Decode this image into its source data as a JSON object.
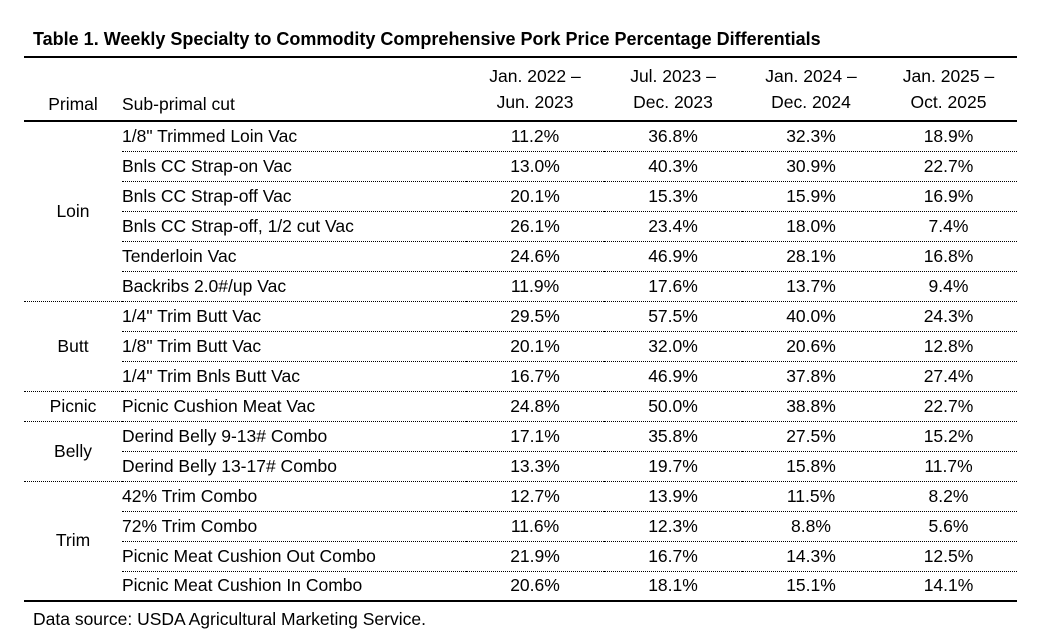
{
  "title": "Table 1. Weekly Specialty to Commodity Comprehensive Pork Price Percentage Differentials",
  "table": {
    "headers": {
      "primal": "Primal",
      "subprimal": "Sub-primal cut",
      "periods": [
        {
          "line1": "Jan. 2022 –",
          "line2": "Jun. 2023"
        },
        {
          "line1": "Jul. 2023 –",
          "line2": "Dec. 2023"
        },
        {
          "line1": "Jan. 2024 –",
          "line2": "Dec. 2024"
        },
        {
          "line1": "Jan. 2025 –",
          "line2": "Oct. 2025"
        }
      ]
    },
    "sections": [
      {
        "primal": "Loin",
        "rows": [
          {
            "cut": "1/8\" Trimmed Loin Vac",
            "values": [
              "11.2%",
              "36.8%",
              "32.3%",
              "18.9%"
            ]
          },
          {
            "cut": "Bnls CC Strap-on Vac",
            "values": [
              "13.0%",
              "40.3%",
              "30.9%",
              "22.7%"
            ]
          },
          {
            "cut": "Bnls CC Strap-off Vac",
            "values": [
              "20.1%",
              "15.3%",
              "15.9%",
              "16.9%"
            ]
          },
          {
            "cut": "Bnls CC Strap-off, 1/2 cut Vac",
            "values": [
              "26.1%",
              "23.4%",
              "18.0%",
              "7.4%"
            ]
          },
          {
            "cut": "Tenderloin Vac",
            "values": [
              "24.6%",
              "46.9%",
              "28.1%",
              "16.8%"
            ]
          },
          {
            "cut": "Backribs 2.0#/up Vac",
            "values": [
              "11.9%",
              "17.6%",
              "13.7%",
              "9.4%"
            ]
          }
        ]
      },
      {
        "primal": "Butt",
        "rows": [
          {
            "cut": "1/4\" Trim Butt Vac",
            "values": [
              "29.5%",
              "57.5%",
              "40.0%",
              "24.3%"
            ]
          },
          {
            "cut": "1/8\" Trim Butt Vac",
            "values": [
              "20.1%",
              "32.0%",
              "20.6%",
              "12.8%"
            ]
          },
          {
            "cut": "1/4\" Trim Bnls Butt Vac",
            "values": [
              "16.7%",
              "46.9%",
              "37.8%",
              "27.4%"
            ]
          }
        ]
      },
      {
        "primal": "Picnic",
        "rows": [
          {
            "cut": "Picnic Cushion Meat Vac",
            "values": [
              "24.8%",
              "50.0%",
              "38.8%",
              "22.7%"
            ]
          }
        ]
      },
      {
        "primal": "Belly",
        "rows": [
          {
            "cut": "Derind Belly 9-13# Combo",
            "values": [
              "17.1%",
              "35.8%",
              "27.5%",
              "15.2%"
            ]
          },
          {
            "cut": "Derind Belly 13-17# Combo",
            "values": [
              "13.3%",
              "19.7%",
              "15.8%",
              "11.7%"
            ]
          }
        ]
      },
      {
        "primal": "Trim",
        "rows": [
          {
            "cut": "42% Trim Combo",
            "values": [
              "12.7%",
              "13.9%",
              "11.5%",
              "8.2%"
            ]
          },
          {
            "cut": "72% Trim Combo",
            "values": [
              "11.6%",
              "12.3%",
              "8.8%",
              "5.6%"
            ]
          },
          {
            "cut": "Picnic Meat Cushion Out Combo",
            "values": [
              "21.9%",
              "16.7%",
              "14.3%",
              "12.5%"
            ]
          },
          {
            "cut": "Picnic Meat Cushion In Combo",
            "values": [
              "20.6%",
              "18.1%",
              "15.1%",
              "14.1%"
            ]
          }
        ]
      }
    ]
  },
  "footer": {
    "text": "Data source: USDA Agricultural Marketing Service."
  },
  "colors": {
    "text": "#000000",
    "background": "#ffffff",
    "rule": "#000000"
  }
}
